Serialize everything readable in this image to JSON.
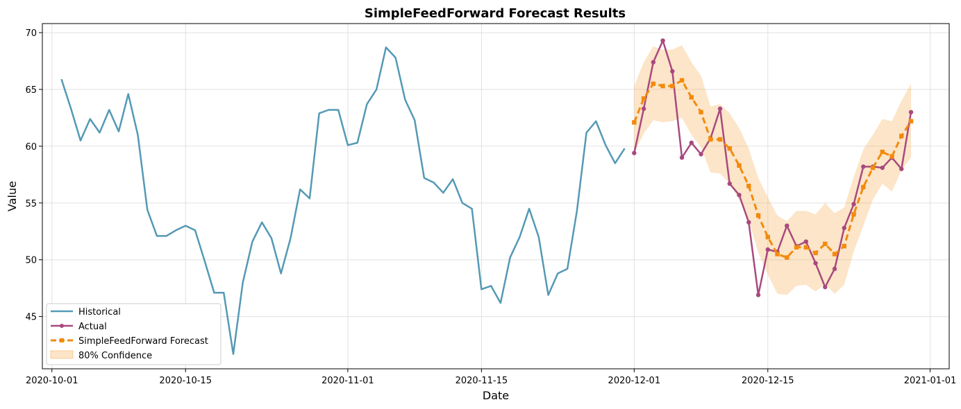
{
  "chart_data": {
    "type": "line",
    "title": "SimpleFeedForward Forecast Results",
    "xlabel": "Date",
    "ylabel": "Value",
    "xlim": [
      "2020-09-30",
      "2021-01-03"
    ],
    "ylim": [
      40.4,
      70.8
    ],
    "x_ticks": [
      "2020-10-01",
      "2020-10-15",
      "2020-11-01",
      "2020-11-15",
      "2020-12-01",
      "2020-12-15",
      "2021-01-01"
    ],
    "y_ticks": [
      45,
      50,
      55,
      60,
      65,
      70
    ],
    "grid": true,
    "legend_position": "lower-left",
    "series": [
      {
        "name": "Historical",
        "color": "#5499b5",
        "style": "line",
        "x": [
          "2020-10-02",
          "2020-10-03",
          "2020-10-04",
          "2020-10-05",
          "2020-10-06",
          "2020-10-07",
          "2020-10-08",
          "2020-10-09",
          "2020-10-10",
          "2020-10-11",
          "2020-10-12",
          "2020-10-13",
          "2020-10-14",
          "2020-10-15",
          "2020-10-16",
          "2020-10-17",
          "2020-10-18",
          "2020-10-19",
          "2020-10-20",
          "2020-10-21",
          "2020-10-22",
          "2020-10-23",
          "2020-10-24",
          "2020-10-25",
          "2020-10-26",
          "2020-10-27",
          "2020-10-28",
          "2020-10-29",
          "2020-10-30",
          "2020-10-31",
          "2020-11-01",
          "2020-11-02",
          "2020-11-03",
          "2020-11-04",
          "2020-11-05",
          "2020-11-06",
          "2020-11-07",
          "2020-11-08",
          "2020-11-09",
          "2020-11-10",
          "2020-11-11",
          "2020-11-12",
          "2020-11-13",
          "2020-11-14",
          "2020-11-15",
          "2020-11-16",
          "2020-11-17",
          "2020-11-18",
          "2020-11-19",
          "2020-11-20",
          "2020-11-21",
          "2020-11-22",
          "2020-11-23",
          "2020-11-24",
          "2020-11-25",
          "2020-11-26",
          "2020-11-27",
          "2020-11-28",
          "2020-11-29",
          "2020-11-30"
        ],
        "values": [
          65.9,
          63.3,
          60.5,
          62.4,
          61.2,
          63.2,
          61.3,
          64.6,
          61.0,
          54.4,
          52.1,
          52.1,
          52.6,
          53.0,
          52.6,
          49.9,
          47.1,
          47.1,
          41.7,
          48.0,
          51.6,
          53.3,
          51.9,
          48.8,
          51.9,
          56.2,
          55.4,
          62.9,
          63.2,
          63.2,
          60.1,
          60.3,
          63.7,
          65.0,
          68.7,
          67.8,
          64.1,
          62.3,
          57.2,
          56.8,
          55.9,
          57.1,
          55.0,
          54.5,
          47.4,
          47.7,
          46.2,
          50.2,
          52.0,
          54.5,
          52.0,
          46.9,
          48.8,
          49.2,
          54.3,
          61.2,
          62.2,
          60.1,
          58.5,
          59.8
        ]
      },
      {
        "name": "Actual",
        "color": "#a8497d",
        "style": "line-markers",
        "x": [
          "2020-12-01",
          "2020-12-02",
          "2020-12-03",
          "2020-12-04",
          "2020-12-05",
          "2020-12-06",
          "2020-12-07",
          "2020-12-08",
          "2020-12-09",
          "2020-12-10",
          "2020-12-11",
          "2020-12-12",
          "2020-12-13",
          "2020-12-14",
          "2020-12-15",
          "2020-12-16",
          "2020-12-17",
          "2020-12-18",
          "2020-12-19",
          "2020-12-20",
          "2020-12-21",
          "2020-12-22",
          "2020-12-23",
          "2020-12-24",
          "2020-12-25",
          "2020-12-26",
          "2020-12-27",
          "2020-12-28",
          "2020-12-29",
          "2020-12-30",
          "2020-12-31"
        ],
        "values": [
          59.4,
          63.3,
          67.4,
          69.3,
          66.6,
          59.0,
          60.3,
          59.3,
          60.7,
          63.3,
          56.7,
          55.7,
          53.3,
          46.9,
          50.9,
          50.7,
          53.0,
          51.2,
          51.6,
          49.7,
          47.6,
          49.2,
          52.8,
          54.9,
          58.2,
          58.2,
          58.1,
          59.0,
          58.0,
          63.0,
          null
        ]
      },
      {
        "name": "SimpleFeedForward Forecast",
        "color": "#f28a0c",
        "style": "dashed-markers",
        "x": [
          "2020-12-01",
          "2020-12-02",
          "2020-12-03",
          "2020-12-04",
          "2020-12-05",
          "2020-12-06",
          "2020-12-07",
          "2020-12-08",
          "2020-12-09",
          "2020-12-10",
          "2020-12-11",
          "2020-12-12",
          "2020-12-13",
          "2020-12-14",
          "2020-12-15",
          "2020-12-16",
          "2020-12-17",
          "2020-12-18",
          "2020-12-19",
          "2020-12-20",
          "2020-12-21",
          "2020-12-22",
          "2020-12-23",
          "2020-12-24",
          "2020-12-25",
          "2020-12-26",
          "2020-12-27",
          "2020-12-28",
          "2020-12-29",
          "2020-12-30",
          "2020-12-31"
        ],
        "values": [
          62.1,
          64.2,
          65.5,
          65.3,
          65.3,
          65.8,
          64.3,
          63.0,
          60.6,
          60.6,
          59.8,
          58.3,
          56.5,
          53.9,
          52.0,
          50.5,
          50.2,
          51.1,
          51.1,
          50.6,
          51.4,
          50.5,
          51.2,
          54.0,
          56.4,
          58.1,
          59.5,
          59.1,
          60.9,
          62.2,
          null
        ]
      }
    ],
    "band": {
      "name": "80% Confidence",
      "color": "#f5b460",
      "opacity": 0.35,
      "x": [
        "2020-12-01",
        "2020-12-02",
        "2020-12-03",
        "2020-12-04",
        "2020-12-05",
        "2020-12-06",
        "2020-12-07",
        "2020-12-08",
        "2020-12-09",
        "2020-12-10",
        "2020-12-11",
        "2020-12-12",
        "2020-12-13",
        "2020-12-14",
        "2020-12-15",
        "2020-12-16",
        "2020-12-17",
        "2020-12-18",
        "2020-12-19",
        "2020-12-20",
        "2020-12-21",
        "2020-12-22",
        "2020-12-23",
        "2020-12-24",
        "2020-12-25",
        "2020-12-26",
        "2020-12-27",
        "2020-12-28",
        "2020-12-29",
        "2020-12-30",
        "2020-12-31"
      ],
      "lower": [
        59.4,
        61.1,
        62.3,
        62.1,
        62.2,
        62.5,
        61.0,
        59.9,
        57.7,
        57.6,
        56.7,
        55.3,
        53.5,
        50.6,
        48.7,
        47.0,
        46.9,
        47.7,
        47.8,
        47.2,
        47.9,
        47.0,
        47.8,
        50.7,
        53.0,
        55.3,
        56.7,
        56.0,
        57.9,
        59.0,
        null
      ],
      "upper": [
        65.3,
        67.4,
        68.8,
        68.5,
        68.5,
        68.9,
        67.4,
        66.2,
        63.5,
        63.7,
        62.9,
        61.6,
        59.8,
        57.2,
        55.5,
        53.9,
        53.4,
        54.3,
        54.3,
        54.0,
        55.0,
        54.1,
        54.6,
        57.3,
        59.7,
        61.0,
        62.4,
        62.2,
        64.0,
        65.5,
        null
      ]
    }
  }
}
